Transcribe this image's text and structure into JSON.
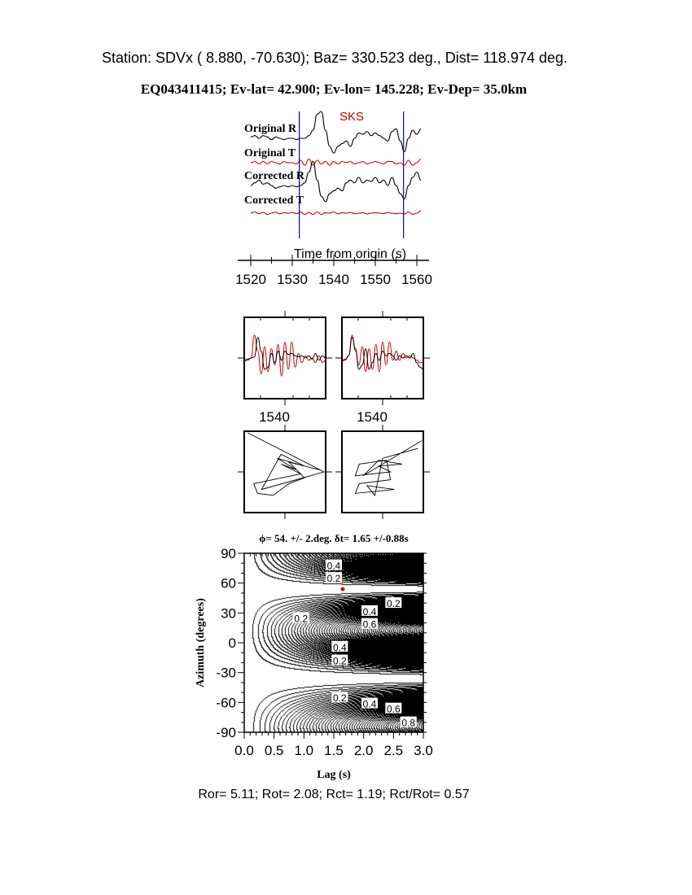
{
  "header": {
    "station_line": "Station: SDVx ( 8.880,  -70.630); Baz=  330.523 deg., Dist=  118.974 deg.",
    "event_line": "EQ043411415; Ev-lat=  42.900; Ev-lon= 145.228; Ev-Dep= 35.0km"
  },
  "colors": {
    "trace_r": "#000000",
    "trace_t": "#cc0000",
    "phase_marker": "#0000cc",
    "phase_label": "#cc0000",
    "best_fit_dot": "#dd0000"
  },
  "chart_data": [
    {
      "type": "line",
      "phase_label": "SKS",
      "xlabel": "Time from origin (s)",
      "xlim": [
        1520,
        1561
      ],
      "xticks": [
        "1520",
        "1530",
        "1540",
        "1550",
        "1560"
      ],
      "window_markers": [
        1531.7,
        1556.8
      ],
      "t0": 1520,
      "dt": 1,
      "series": [
        {
          "name": "Original R",
          "color": "#000000",
          "values": [
            0.05,
            0.1,
            0,
            0.1,
            0.05,
            -0.05,
            0.05,
            0,
            -0.05,
            0,
            0,
            -0.05,
            0,
            0,
            0.1,
            0.3,
            0.9,
            1.0,
            0.3,
            -0.3,
            -0.55,
            -0.3,
            -0.2,
            -0.1,
            -0.3,
            0,
            0.2,
            0.15,
            0.25,
            0.1,
            0.2,
            0.1,
            0,
            -0.1,
            0.25,
            0.35,
            -0.1,
            -0.5,
            0,
            0.3,
            0.15,
            0.35
          ]
        },
        {
          "name": "Original T",
          "color": "#cc0000",
          "values": [
            0,
            0.05,
            -0.05,
            0.05,
            -0.05,
            0.05,
            0,
            -0.05,
            0.05,
            0,
            0,
            -0.05,
            0.1,
            -0.1,
            0.15,
            -0.1,
            0.1,
            -0.05,
            0.05,
            -0.1,
            0.05,
            -0.05,
            0.05,
            0,
            0.05,
            -0.05,
            0,
            0.05,
            -0.05,
            0,
            0.05,
            0,
            -0.05,
            0.05,
            0.05,
            -0.05,
            0,
            -0.1,
            0.1,
            -0.1,
            0,
            0.15
          ]
        },
        {
          "name": "Corrected R",
          "color": "#000000",
          "values": [
            0,
            0.1,
            0.2,
            0.05,
            0.1,
            0,
            -0.1,
            -0.05,
            0,
            -0.05,
            0,
            -0.05,
            0,
            0.1,
            0.5,
            0.9,
            0.2,
            -0.4,
            -0.6,
            -0.3,
            -0.2,
            -0.1,
            -0.2,
            0.1,
            0.2,
            0.1,
            0.3,
            0.1,
            0.2,
            0.15,
            0.3,
            0.1,
            0.2,
            0,
            0.3,
            0,
            -0.3,
            -0.5,
            0,
            0.3,
            0.5,
            0.2
          ]
        },
        {
          "name": "Corrected T",
          "color": "#cc0000",
          "values": [
            0,
            0.05,
            -0.02,
            0.03,
            -0.05,
            0,
            0.04,
            -0.03,
            0.02,
            0,
            0.03,
            -0.02,
            0.05,
            -0.05,
            0.03,
            -0.05,
            0.05,
            -0.05,
            0.02,
            0,
            0.05,
            -0.03,
            0.02,
            0,
            0.03,
            -0.02,
            0,
            0.02,
            -0.03,
            0,
            0.02,
            0,
            -0.02,
            0.03,
            0,
            -0.02,
            0,
            -0.03,
            0.05,
            -0.05,
            0,
            0.1
          ]
        }
      ]
    },
    {
      "type": "line",
      "xtick_label": "1540",
      "panels": [
        {
          "black": [
            -0.1,
            -0.05,
            0,
            0.05,
            0.9,
            0.3,
            -0.5,
            -0.4,
            0.2,
            -0.2,
            0.3,
            -0.1,
            0.3,
            0.15,
            0.2,
            0.1,
            0.05,
            0.1,
            0,
            0.1,
            -0.05,
            0.2,
            -0.1,
            0.1,
            0
          ],
          "red": [
            -0.15,
            -0.1,
            0,
            1.0,
            0.3,
            -0.7,
            0.5,
            -0.6,
            0.4,
            -0.3,
            0.6,
            -0.8,
            0.7,
            -0.5,
            0.7,
            -0.4,
            0.2,
            -0.2,
            0.1,
            -0.1,
            0,
            -0.2,
            0.1,
            -0.2,
            -0.1
          ]
        },
        {
          "black": [
            -0.1,
            -0.05,
            0.1,
            0.9,
            0.4,
            -0.5,
            -0.3,
            0.4,
            -0.5,
            -0.2,
            0.2,
            -0.1,
            0.3,
            0.1,
            0.2,
            0.1,
            -0.1,
            0.1,
            0,
            0.1,
            0,
            0.2,
            -0.2,
            -0.4,
            -0.5
          ],
          "red": [
            -0.15,
            -0.1,
            0.1,
            1.0,
            0.3,
            -0.3,
            0.5,
            -0.6,
            0.4,
            -0.5,
            0.6,
            -0.6,
            0.7,
            -0.3,
            0.7,
            -0.1,
            0.3,
            -0.1,
            0.2,
            0,
            0.1,
            0,
            -0.1,
            -0.2,
            -0.2
          ]
        }
      ]
    },
    {
      "type": "scatter",
      "description_of": "particle motion",
      "panels": [
        {
          "points": [
            [
              -0.95,
              1
            ],
            [
              1,
              0
            ],
            [
              -0.6,
              -0.45
            ],
            [
              -0.1,
              0.45
            ],
            [
              0.5,
              0.15
            ],
            [
              -0.2,
              0.35
            ],
            [
              0.3,
              0.05
            ],
            [
              -0.1,
              0.2
            ],
            [
              0.4,
              -0.05
            ],
            [
              -0.8,
              -0.3
            ],
            [
              -0.7,
              -0.55
            ],
            [
              -0.3,
              -0.6
            ],
            [
              0.1,
              -0.3
            ],
            [
              0.5,
              -0.15
            ],
            [
              0.1,
              0.25
            ],
            [
              0.9,
              0.05
            ]
          ]
        },
        {
          "points": [
            [
              1,
              0.8
            ],
            [
              -0.5,
              -0.1
            ],
            [
              -0.1,
              0.3
            ],
            [
              0.5,
              0.2
            ],
            [
              -0.1,
              0.15
            ],
            [
              0.2,
              0.0
            ],
            [
              -0.7,
              -0.1
            ],
            [
              -0.6,
              0.2
            ],
            [
              0.1,
              0.3
            ],
            [
              0.2,
              -0.2
            ],
            [
              -0.6,
              -0.3
            ],
            [
              -0.7,
              -0.55
            ],
            [
              0.3,
              -0.45
            ],
            [
              -0.4,
              -0.35
            ],
            [
              -0.2,
              -0.6
            ],
            [
              0,
              0.35
            ],
            [
              0.9,
              0.6
            ]
          ]
        }
      ]
    },
    {
      "type": "heatmap",
      "title": "ϕ= 54. +/- 2.deg. δt= 1.65 +/-0.88s",
      "xlabel": "Lag (s)",
      "ylabel": "Azimuth (degrees)",
      "xlim": [
        0,
        3
      ],
      "ylim": [
        -90,
        90
      ],
      "xticks": [
        "0.0",
        "0.5",
        "1.0",
        "1.5",
        "2.0",
        "2.5",
        "3.0"
      ],
      "yticks": [
        "90",
        "60",
        "30",
        "0",
        "-30",
        "-60",
        "-90"
      ],
      "best_fit": {
        "lag": 1.65,
        "azimuth": 54
      },
      "contour_labels": [
        {
          "text": "0.4",
          "lag": 1.5,
          "az": 78
        },
        {
          "text": "0.2",
          "lag": 1.5,
          "az": 67
        },
        {
          "text": "0.2",
          "lag": 2.5,
          "az": 40
        },
        {
          "text": "0.4",
          "lag": 2.1,
          "az": 32
        },
        {
          "text": "0.6",
          "lag": 2.1,
          "az": 24
        },
        {
          "text": "0.2",
          "lag": 0.95,
          "az": 25
        },
        {
          "text": "0.4",
          "lag": 1.6,
          "az": -4
        },
        {
          "text": "0.2",
          "lag": 1.6,
          "az": -16
        },
        {
          "text": "0.2",
          "lag": 1.6,
          "az": -55
        },
        {
          "text": "0.4",
          "lag": 2.1,
          "az": -61
        },
        {
          "text": "0.6",
          "lag": 2.5,
          "az": -66
        },
        {
          "text": "0.8",
          "lag": 2.75,
          "az": -70
        }
      ]
    }
  ],
  "footer": "Ror= 5.11; Rot= 2.08; Rct= 1.19; Rct/Rot= 0.57"
}
